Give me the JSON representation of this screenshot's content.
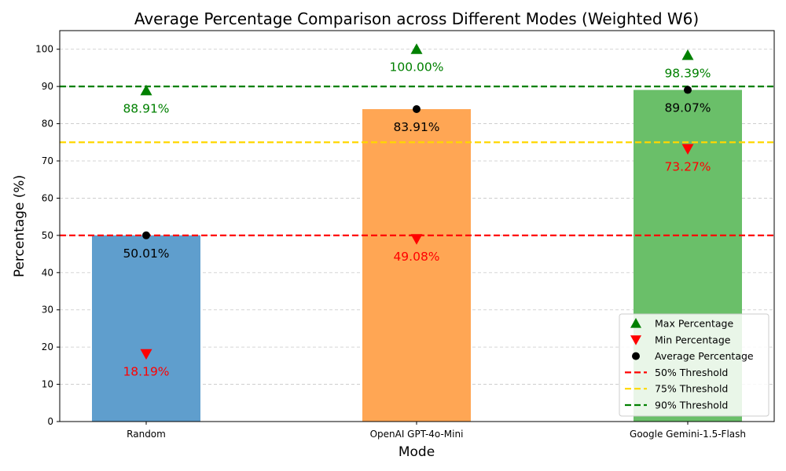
{
  "chart_data": {
    "type": "bar",
    "title": "Average Percentage Comparison across Different Modes (Weighted W6)",
    "xlabel": "Mode",
    "ylabel": "Percentage (%)",
    "categories": [
      "Random",
      "OpenAI GPT-4o-Mini",
      "Google Gemini-1.5-Flash"
    ],
    "ylim": [
      0,
      105
    ],
    "yticks": [
      0,
      10,
      20,
      30,
      40,
      50,
      60,
      70,
      80,
      90,
      100
    ],
    "grid": "y-dashed",
    "legend_position": "lower-right",
    "bar_colors": [
      "#5f9ecd",
      "#ffa654",
      "#6abf69"
    ],
    "series": [
      {
        "name": "Average Percentage",
        "values": [
          50.01,
          83.91,
          89.07
        ],
        "labels": [
          "50.01%",
          "83.91%",
          "89.07%"
        ],
        "marker": "circle",
        "color": "#000000"
      },
      {
        "name": "Max Percentage",
        "values": [
          88.91,
          100.0,
          98.39
        ],
        "labels": [
          "88.91%",
          "100.00%",
          "98.39%"
        ],
        "marker": "triangle-up",
        "color": "#008000"
      },
      {
        "name": "Min Percentage",
        "values": [
          18.19,
          49.08,
          73.27
        ],
        "labels": [
          "18.19%",
          "49.08%",
          "73.27%"
        ],
        "marker": "triangle-down",
        "color": "#ff0000"
      }
    ],
    "thresholds": [
      {
        "name": "50% Threshold",
        "value": 50,
        "color": "#ff0000"
      },
      {
        "name": "75% Threshold",
        "value": 75,
        "color": "#ffd700"
      },
      {
        "name": "90% Threshold",
        "value": 90,
        "color": "#008000"
      }
    ],
    "legend": [
      "Max Percentage",
      "Min Percentage",
      "Average Percentage",
      "50% Threshold",
      "75% Threshold",
      "90% Threshold"
    ]
  }
}
